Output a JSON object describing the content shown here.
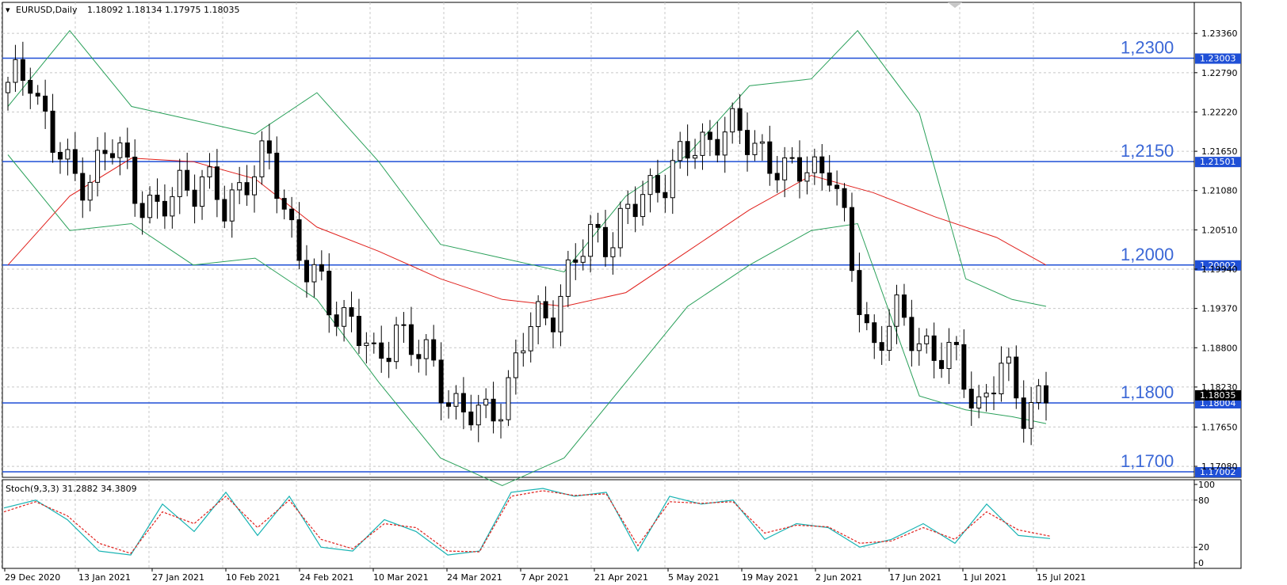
{
  "header": {
    "menu_arrow": "triangle-down-icon",
    "symbol": "EURUSD,Daily",
    "ohlc": "1.18092 1.18134 1.17975 1.18035"
  },
  "indicator": {
    "label": "Stoch(9,3,3) 31.2882 34.3809",
    "ticks": [
      "100",
      "80",
      "20",
      "0"
    ]
  },
  "colors": {
    "candle_up": "#000000",
    "candle_down": "#000000",
    "bollinger": "#2aa05a",
    "ma": "#e0201c",
    "level": "#1f4fd6",
    "stoch_main": "#17b3b3",
    "stoch_signal": "#e0201c",
    "grid": "#c8c8c8"
  },
  "chart_data": {
    "type": "candlestick",
    "price_ticks": [
      "1.23360",
      "1.22790",
      "1.22220",
      "1.21650",
      "1.21080",
      "1.20510",
      "1.19940",
      "1.19370",
      "1.18800",
      "1.18230",
      "1.17650",
      "1.17080"
    ],
    "price_range": [
      1.1692,
      1.2381
    ],
    "date_ticks": [
      "29 Dec 2020",
      "13 Jan 2021",
      "27 Jan 2021",
      "10 Feb 2021",
      "24 Feb 2021",
      "10 Mar 2021",
      "24 Mar 2021",
      "7 Apr 2021",
      "21 Apr 2021",
      "5 May 2021",
      "19 May 2021",
      "2 Jun 2021",
      "17 Jun 2021",
      "1 Jul 2021",
      "15 Jul 2021"
    ],
    "levels": [
      {
        "value": 1.23,
        "label": "1,2300",
        "tag": "1.23003"
      },
      {
        "value": 1.215,
        "label": "1,2150",
        "tag": "1.21501"
      },
      {
        "value": 1.2,
        "label": "1,2000",
        "tag": "1.20002"
      },
      {
        "value": 1.18,
        "label": "1,1800",
        "tag": "1.18004"
      },
      {
        "value": 1.17,
        "label": "1,1700",
        "tag": "1.17002"
      }
    ],
    "current_price_tag": "1.18035",
    "close_path": [
      [
        0,
        1.225
      ],
      [
        7,
        1.229
      ],
      [
        14,
        1.2175
      ],
      [
        21,
        1.2125
      ],
      [
        28,
        1.214
      ],
      [
        35,
        1.217
      ],
      [
        42,
        1.211
      ],
      [
        49,
        1.2065
      ],
      [
        56,
        1.212
      ],
      [
        63,
        1.2125
      ],
      [
        70,
        1.2075
      ],
      [
        77,
        1.2135
      ],
      [
        84,
        1.215
      ],
      [
        91,
        1.2065
      ],
      [
        98,
        1.1985
      ],
      [
        105,
        1.193
      ],
      [
        112,
        1.193
      ],
      [
        119,
        1.184
      ],
      [
        126,
        1.192
      ],
      [
        133,
        1.187
      ],
      [
        140,
        1.183
      ],
      [
        147,
        1.179
      ],
      [
        154,
        1.177
      ],
      [
        161,
        1.182
      ],
      [
        168,
        1.19
      ],
      [
        175,
        1.193
      ],
      [
        182,
        1.199
      ],
      [
        189,
        1.204
      ],
      [
        196,
        1.205
      ],
      [
        203,
        1.208
      ],
      [
        210,
        1.2125
      ],
      [
        217,
        1.2145
      ],
      [
        224,
        1.2175
      ],
      [
        231,
        1.22
      ],
      [
        238,
        1.218
      ],
      [
        245,
        1.217
      ],
      [
        252,
        1.212
      ],
      [
        259,
        1.215
      ],
      [
        266,
        1.214
      ],
      [
        273,
        1.2
      ],
      [
        280,
        1.188
      ],
      [
        287,
        1.192
      ],
      [
        294,
        1.1905
      ],
      [
        301,
        1.186
      ],
      [
        308,
        1.186
      ],
      [
        315,
        1.179
      ],
      [
        322,
        1.185
      ],
      [
        329,
        1.18
      ],
      [
        336,
        1.1803
      ]
    ],
    "ma_path": [
      [
        0,
        1.2
      ],
      [
        20,
        1.21
      ],
      [
        40,
        1.2155
      ],
      [
        60,
        1.215
      ],
      [
        80,
        1.2125
      ],
      [
        100,
        1.2055
      ],
      [
        120,
        1.202
      ],
      [
        140,
        1.198
      ],
      [
        160,
        1.195
      ],
      [
        180,
        1.194
      ],
      [
        200,
        1.196
      ],
      [
        220,
        1.202
      ],
      [
        240,
        1.208
      ],
      [
        260,
        1.213
      ],
      [
        280,
        1.2105
      ],
      [
        300,
        1.207
      ],
      [
        320,
        1.204
      ],
      [
        336,
        1.2
      ]
    ],
    "bb_upper_path": [
      [
        0,
        1.223
      ],
      [
        20,
        1.234
      ],
      [
        40,
        1.223
      ],
      [
        60,
        1.221
      ],
      [
        80,
        1.219
      ],
      [
        100,
        1.225
      ],
      [
        120,
        1.215
      ],
      [
        140,
        1.203
      ],
      [
        160,
        1.201
      ],
      [
        180,
        1.199
      ],
      [
        200,
        1.21
      ],
      [
        220,
        1.216
      ],
      [
        240,
        1.226
      ],
      [
        260,
        1.227
      ],
      [
        275,
        1.234
      ],
      [
        295,
        1.222
      ],
      [
        310,
        1.198
      ],
      [
        325,
        1.195
      ],
      [
        336,
        1.194
      ]
    ],
    "bb_lower_path": [
      [
        0,
        1.216
      ],
      [
        20,
        1.205
      ],
      [
        40,
        1.206
      ],
      [
        60,
        1.2
      ],
      [
        80,
        1.201
      ],
      [
        100,
        1.195
      ],
      [
        120,
        1.183
      ],
      [
        140,
        1.172
      ],
      [
        160,
        1.168
      ],
      [
        180,
        1.172
      ],
      [
        200,
        1.183
      ],
      [
        220,
        1.194
      ],
      [
        240,
        1.2
      ],
      [
        260,
        1.205
      ],
      [
        275,
        1.206
      ],
      [
        295,
        1.181
      ],
      [
        310,
        1.179
      ],
      [
        325,
        1.178
      ],
      [
        336,
        1.177
      ]
    ],
    "stoch_range": [
      0,
      100
    ],
    "stoch_main": [
      [
        0,
        70
      ],
      [
        12,
        80
      ],
      [
        24,
        55
      ],
      [
        36,
        15
      ],
      [
        48,
        10
      ],
      [
        60,
        75
      ],
      [
        72,
        40
      ],
      [
        84,
        90
      ],
      [
        96,
        35
      ],
      [
        108,
        85
      ],
      [
        120,
        20
      ],
      [
        132,
        15
      ],
      [
        144,
        55
      ],
      [
        156,
        40
      ],
      [
        168,
        10
      ],
      [
        180,
        15
      ],
      [
        192,
        90
      ],
      [
        204,
        95
      ],
      [
        216,
        85
      ],
      [
        228,
        90
      ],
      [
        240,
        15
      ],
      [
        252,
        85
      ],
      [
        264,
        75
      ],
      [
        276,
        80
      ],
      [
        288,
        30
      ],
      [
        300,
        50
      ],
      [
        312,
        45
      ],
      [
        324,
        20
      ],
      [
        336,
        30
      ],
      [
        348,
        50
      ],
      [
        360,
        25
      ],
      [
        372,
        75
      ],
      [
        384,
        35
      ],
      [
        396,
        31
      ]
    ],
    "stoch_signal": [
      [
        0,
        65
      ],
      [
        12,
        78
      ],
      [
        24,
        60
      ],
      [
        36,
        25
      ],
      [
        48,
        12
      ],
      [
        60,
        65
      ],
      [
        72,
        50
      ],
      [
        84,
        85
      ],
      [
        96,
        45
      ],
      [
        108,
        80
      ],
      [
        120,
        30
      ],
      [
        132,
        18
      ],
      [
        144,
        50
      ],
      [
        156,
        45
      ],
      [
        168,
        15
      ],
      [
        180,
        14
      ],
      [
        192,
        85
      ],
      [
        204,
        92
      ],
      [
        216,
        86
      ],
      [
        228,
        88
      ],
      [
        240,
        22
      ],
      [
        252,
        78
      ],
      [
        264,
        76
      ],
      [
        276,
        78
      ],
      [
        288,
        38
      ],
      [
        300,
        48
      ],
      [
        312,
        46
      ],
      [
        324,
        25
      ],
      [
        336,
        28
      ],
      [
        348,
        45
      ],
      [
        360,
        30
      ],
      [
        372,
        65
      ],
      [
        384,
        42
      ],
      [
        396,
        34
      ]
    ]
  }
}
